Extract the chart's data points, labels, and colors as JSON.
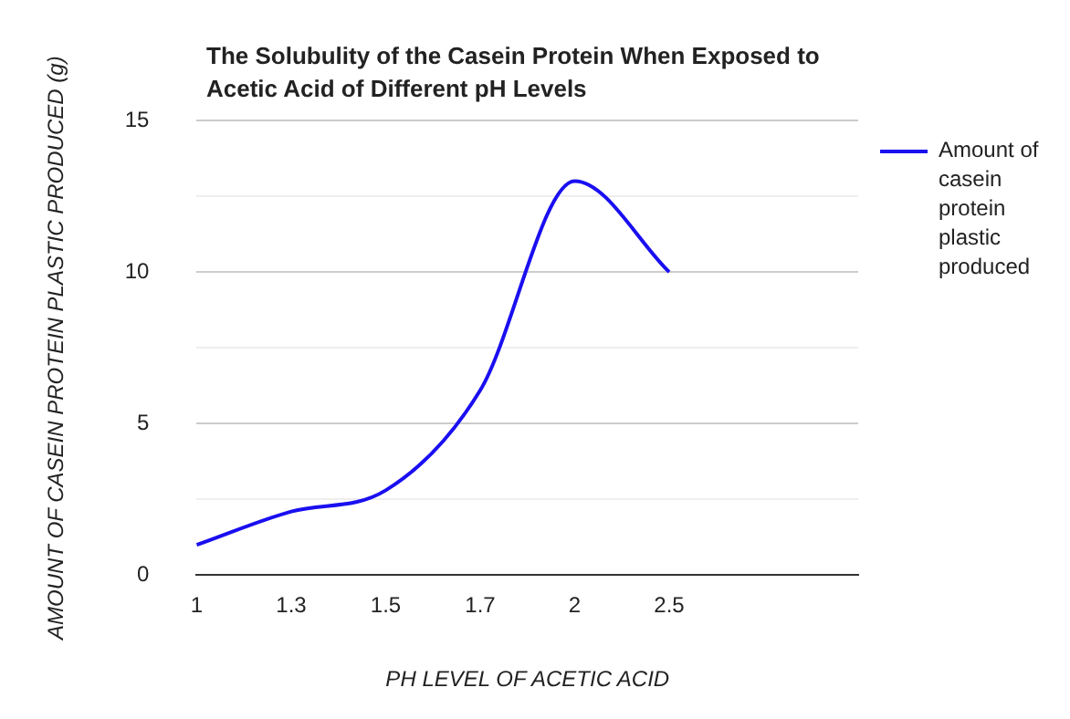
{
  "chart_data": {
    "type": "line",
    "title": "The Solubulity of the Casein Protein When Exposed to Acetic Acid of Different pH Levels",
    "xlabel": "PH LEVEL OF ACETIC ACID",
    "ylabel": "AMOUNT OF CASEIN PROTEIN PLASTIC PRODUCED (g)",
    "categories": [
      "1",
      "1.3",
      "1.5",
      "1.7",
      "2",
      "2.5",
      null,
      null
    ],
    "series": [
      {
        "name": "Amount of casein protein plastic produced",
        "color": "#1a0ff0",
        "values": [
          1,
          2.1,
          2.8,
          6.1,
          13,
          10,
          null,
          null
        ]
      }
    ],
    "ylim": [
      0,
      15
    ],
    "yticks": [
      0,
      {
        "value": 2.5,
        "label": null
      },
      5,
      {
        "value": 7.5,
        "label": null
      },
      10,
      {
        "value": 12.5,
        "label": null
      },
      15
    ],
    "grid": "y",
    "legend": "top right",
    "marker": "none",
    "line_style": "solid"
  }
}
